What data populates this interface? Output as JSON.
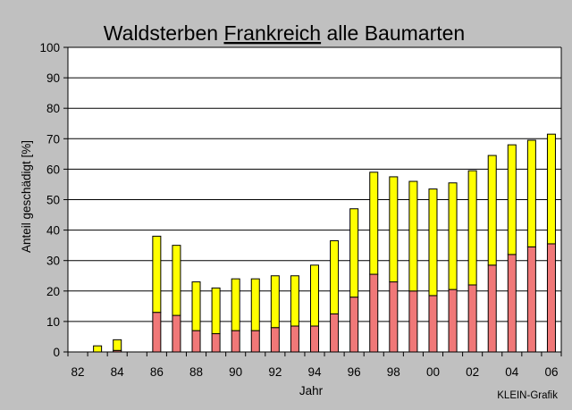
{
  "chart_data": {
    "type": "bar",
    "stacked": true,
    "title": "Waldsterben Frankreich alle Baumarten",
    "title_parts": [
      {
        "text": "Waldsterben ",
        "underline": false
      },
      {
        "text": "Frankreich",
        "underline": true
      },
      {
        "text": " alle Baumarten",
        "underline": false
      }
    ],
    "xlabel": "Jahr",
    "ylabel": "Anteil geschädigt [%]",
    "credit": "KLEIN-Grafik",
    "ylim": [
      0,
      100
    ],
    "yticks": [
      0,
      10,
      20,
      30,
      40,
      50,
      60,
      70,
      80,
      90,
      100
    ],
    "grid": true,
    "legend": "none",
    "categories": [
      "1982",
      "1983",
      "1984",
      "1985",
      "1986",
      "1987",
      "1988",
      "1989",
      "1990",
      "1991",
      "1992",
      "1993",
      "1994",
      "1995",
      "1996",
      "1997",
      "1998",
      "1999",
      "2000",
      "2001",
      "2002",
      "2003",
      "2004",
      "2005",
      "2006"
    ],
    "tick_labels": [
      "82",
      "",
      "84",
      "",
      "86",
      "",
      "88",
      "",
      "90",
      "",
      "92",
      "",
      "94",
      "",
      "96",
      "",
      "98",
      "",
      "00",
      "",
      "02",
      "",
      "04",
      "",
      "06"
    ],
    "series": [
      {
        "color": "#f07878",
        "values": [
          null,
          0,
          0.5,
          null,
          13,
          12,
          7,
          6,
          7,
          7,
          8,
          8.5,
          8.5,
          12.5,
          18,
          25.5,
          23,
          20,
          18.5,
          20.5,
          22,
          28.5,
          32,
          34.5,
          35.5
        ]
      },
      {
        "color": "#ffff00",
        "values": [
          null,
          2,
          3.5,
          null,
          25,
          23,
          16,
          15,
          17,
          17,
          17,
          16.5,
          20,
          24,
          29,
          33.5,
          34.5,
          36,
          35,
          35,
          37.5,
          36,
          36,
          35,
          36
        ]
      }
    ],
    "colors": {
      "background": "#c0c0c0",
      "plot_area": "#ffffff",
      "axis": "#000000"
    }
  }
}
